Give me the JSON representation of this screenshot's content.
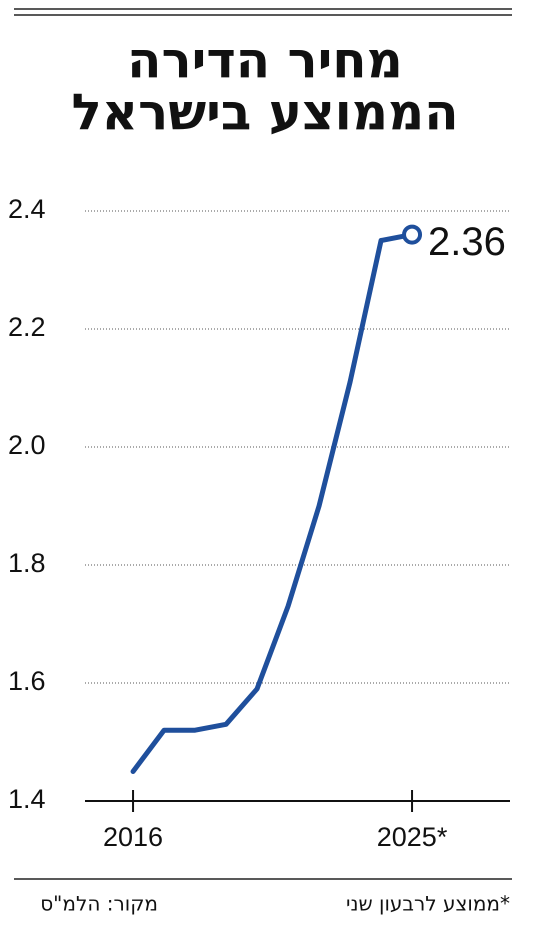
{
  "chart_data": {
    "type": "line",
    "title": [
      "מחיר הדירה",
      "הממוצע בישראל"
    ],
    "x": [
      2016,
      2017,
      2018,
      2019,
      2020,
      2021,
      2022,
      2023,
      2024,
      2025
    ],
    "series": [
      {
        "color": "#1f4f9c",
        "values": [
          1.45,
          1.52,
          1.52,
          1.53,
          1.59,
          1.73,
          1.9,
          2.11,
          2.35,
          2.36
        ]
      }
    ],
    "xlim": [
      2014.45,
      2028.16
    ],
    "xticks": [
      2016,
      {
        "value": 2025,
        "label": "2025*"
      }
    ],
    "ylim": [
      1.4,
      2.4
    ],
    "yticks": [
      1.4,
      1.6,
      1.8,
      {
        "value": 2,
        "label": "2.0"
      },
      2.2,
      2.4
    ],
    "grid": true,
    "note": "*ממוצע לרבעון שני",
    "source": "מקור: הלמ\"ס"
  }
}
